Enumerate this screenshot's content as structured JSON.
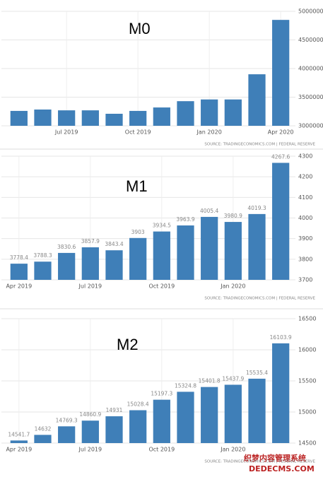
{
  "chart_data": [
    {
      "type": "bar",
      "title": "M0",
      "categories": [
        null,
        null,
        "Jul 2019",
        null,
        null,
        "Oct 2019",
        null,
        null,
        "Jan 2020",
        null,
        null,
        "Apr 2020"
      ],
      "values": [
        3260000,
        3284000,
        3270000,
        3270000,
        3210000,
        3260000,
        3320000,
        3430000,
        3460000,
        3460000,
        3900000,
        4850000
      ],
      "color": "#3f7fb8",
      "ylim": [
        3000000,
        5000000
      ],
      "yticks": [
        3000000,
        3500000,
        4000000,
        4500000,
        5000000
      ],
      "grid": true,
      "source": "SOURCE: TRADINGECONOMICS.COM | FEDERAL RESERVE"
    },
    {
      "type": "bar",
      "title": "M1",
      "categories": [
        "Apr 2019",
        null,
        null,
        "Jul 2019",
        null,
        null,
        "Oct 2019",
        null,
        null,
        "Jan 2020",
        null,
        null
      ],
      "values": [
        3778.4,
        3788.3,
        3830.6,
        3857.9,
        3843.4,
        3903,
        3934.5,
        3963.9,
        4005.4,
        3980.9,
        4019.3,
        4267.6
      ],
      "color": "#3f7fb8",
      "ylim": [
        3700,
        4300
      ],
      "yticks": [
        3700,
        3800,
        3900,
        4000,
        4100,
        4200,
        4300
      ],
      "grid": true,
      "source": "SOURCE: TRADINGECONOMICS.COM | FEDERAL RESERVE"
    },
    {
      "type": "bar",
      "title": "M2",
      "categories": [
        "Apr 2019",
        null,
        null,
        "Jul 2019",
        null,
        null,
        "Oct 2019",
        null,
        null,
        "Jan 2020",
        null,
        null
      ],
      "values": [
        14541.7,
        14632,
        14769.3,
        14860.9,
        14931,
        15028.4,
        15197.3,
        15324.8,
        15401.8,
        15437.9,
        15535.4,
        16103.9
      ],
      "color": "#3f7fb8",
      "ylim": [
        14500,
        16500
      ],
      "yticks": [
        14500,
        15000,
        15500,
        16000,
        16500
      ],
      "grid": true,
      "source": "SOURCE: TRADINGECONOMICS.COM | FEDERAL RESERVE"
    }
  ],
  "watermark": [
    "织梦内容管理系统",
    "DEDECMS.COM"
  ]
}
